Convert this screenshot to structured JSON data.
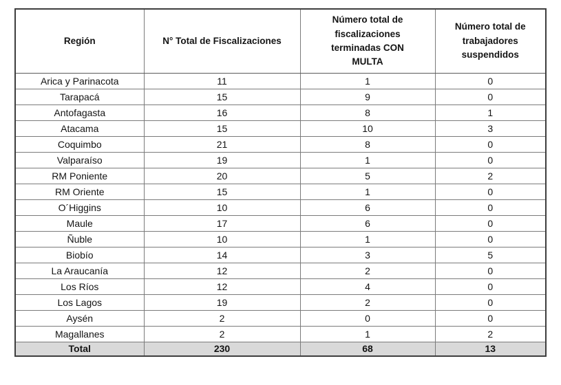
{
  "table": {
    "columns": [
      "Región",
      "N° Total de Fiscalizaciones",
      "Número total de fiscalizaciones terminadas CON MULTA",
      "Número total de trabajadores suspendidos"
    ],
    "rows": [
      [
        "Arica y Parinacota",
        "11",
        "1",
        "0"
      ],
      [
        "Tarapacá",
        "15",
        "9",
        "0"
      ],
      [
        "Antofagasta",
        "16",
        "8",
        "1"
      ],
      [
        "Atacama",
        "15",
        "10",
        "3"
      ],
      [
        "Coquimbo",
        "21",
        "8",
        "0"
      ],
      [
        "Valparaíso",
        "19",
        "1",
        "0"
      ],
      [
        "RM Poniente",
        "20",
        "5",
        "2"
      ],
      [
        "RM Oriente",
        "15",
        "1",
        "0"
      ],
      [
        "O´Higgins",
        "10",
        "6",
        "0"
      ],
      [
        "Maule",
        "17",
        "6",
        "0"
      ],
      [
        "Ñuble",
        "10",
        "1",
        "0"
      ],
      [
        "Biobío",
        "14",
        "3",
        "5"
      ],
      [
        "La Araucanía",
        "12",
        "2",
        "0"
      ],
      [
        "Los Ríos",
        "12",
        "4",
        "0"
      ],
      [
        "Los Lagos",
        "19",
        "2",
        "0"
      ],
      [
        "Aysén",
        "2",
        "0",
        "0"
      ],
      [
        "Magallanes",
        "2",
        "1",
        "2"
      ]
    ],
    "total": {
      "label": "Total",
      "values": [
        "230",
        "68",
        "13"
      ]
    },
    "colors": {
      "total_row_bg": "#d9d9d9",
      "grid_line": "#7a7a7a",
      "outer_border": "#3d3d3d",
      "text": "#141414"
    }
  }
}
